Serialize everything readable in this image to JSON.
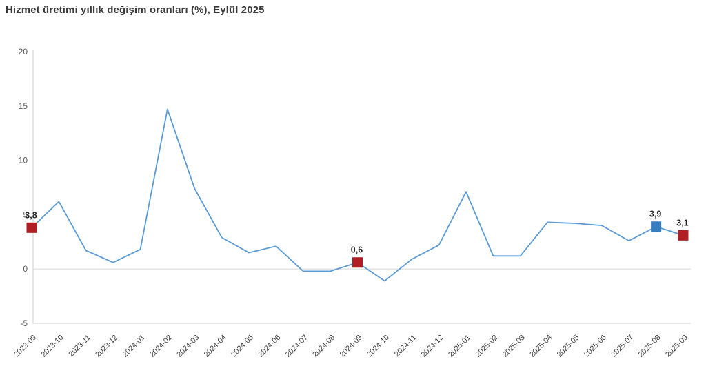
{
  "title": "Hizmet üretimi yıllık değişim oranları (%), Eylül 2025",
  "colors": {
    "line": "#5b9bd5",
    "marker_red": "#b01f24",
    "marker_blue": "#367dbe",
    "axis": "#c9c9c9",
    "gridline": "#e2e2e2",
    "tick_text": "#595959",
    "xlabel_text": "#404040",
    "title_text": "#3a3a3a"
  },
  "chart_data": {
    "type": "line",
    "title": "Hizmet üretimi yıllık değişim oranları (%), Eylül 2025",
    "x": [
      "2023-09",
      "2023-10",
      "2023-11",
      "2023-12",
      "2024-01",
      "2024-02",
      "2024-03",
      "2024-04",
      "2024-05",
      "2024-06",
      "2024-07",
      "2024-08",
      "2024-09",
      "2024-10",
      "2024-11",
      "2024-12",
      "2025-01",
      "2025-02",
      "2025-03",
      "2025-04",
      "2025-05",
      "2025-06",
      "2025-07",
      "2025-08",
      "2025-09"
    ],
    "values": [
      3.8,
      6.2,
      1.7,
      0.6,
      1.8,
      14.7,
      7.4,
      2.9,
      1.5,
      2.1,
      -0.2,
      -0.2,
      0.6,
      -1.1,
      0.9,
      2.2,
      7.1,
      1.2,
      1.2,
      4.3,
      4.2,
      4.0,
      2.6,
      3.9,
      3.1
    ],
    "ylim": [
      -5,
      20
    ],
    "yticks": [
      20,
      15,
      10,
      5,
      0,
      -5
    ],
    "grid": "zero-line-and-bottom-border-only",
    "legend": "none",
    "xlabel": "",
    "ylabel": "",
    "decimal_separator": ",",
    "markers": [
      {
        "x": "2023-09",
        "index": 0,
        "value": 3.8,
        "label": "3,8",
        "color": "#b01f24"
      },
      {
        "x": "2024-09",
        "index": 12,
        "value": 0.6,
        "label": "0,6",
        "color": "#b01f24"
      },
      {
        "x": "2025-08",
        "index": 23,
        "value": 3.9,
        "label": "3,9",
        "color": "#367dbe"
      },
      {
        "x": "2025-09",
        "index": 24,
        "value": 3.1,
        "label": "3,1",
        "color": "#b01f24"
      }
    ]
  }
}
